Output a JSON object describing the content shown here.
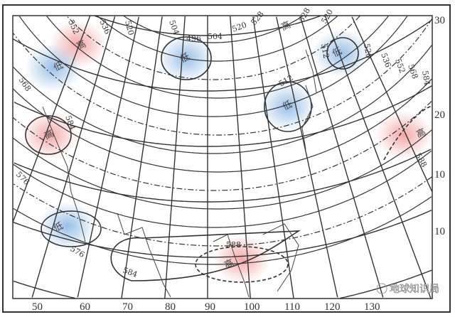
{
  "map": {
    "colors": {
      "high": "#f08a8a",
      "low": "#7fb0e0",
      "line": "#333333"
    },
    "longitude_labels": [
      "50",
      "60",
      "70",
      "80",
      "90",
      "100",
      "110",
      "120",
      "130"
    ],
    "latitude_labels": [
      "30",
      "20",
      "10",
      "10"
    ],
    "contour_labels": [
      "552",
      "536",
      "520",
      "504",
      "496",
      "504",
      "520",
      "528",
      "528",
      "520",
      "512",
      "520",
      "536",
      "552",
      "568",
      "584",
      "512",
      "588",
      "568",
      "584",
      "576",
      "576",
      "584",
      "588"
    ],
    "pressure_centers": [
      {
        "label": "高",
        "type": "high"
      },
      {
        "label": "低",
        "type": "low"
      },
      {
        "label": "低",
        "type": "low"
      },
      {
        "label": "高",
        "type": "high"
      },
      {
        "label": "低",
        "type": "low"
      },
      {
        "label": "低",
        "type": "low"
      },
      {
        "label": "高",
        "type": "high"
      },
      {
        "label": "高",
        "type": "high"
      },
      {
        "label": "低",
        "type": "low"
      },
      {
        "label": "高",
        "type": "high"
      }
    ],
    "watermark": "地球知识局"
  }
}
